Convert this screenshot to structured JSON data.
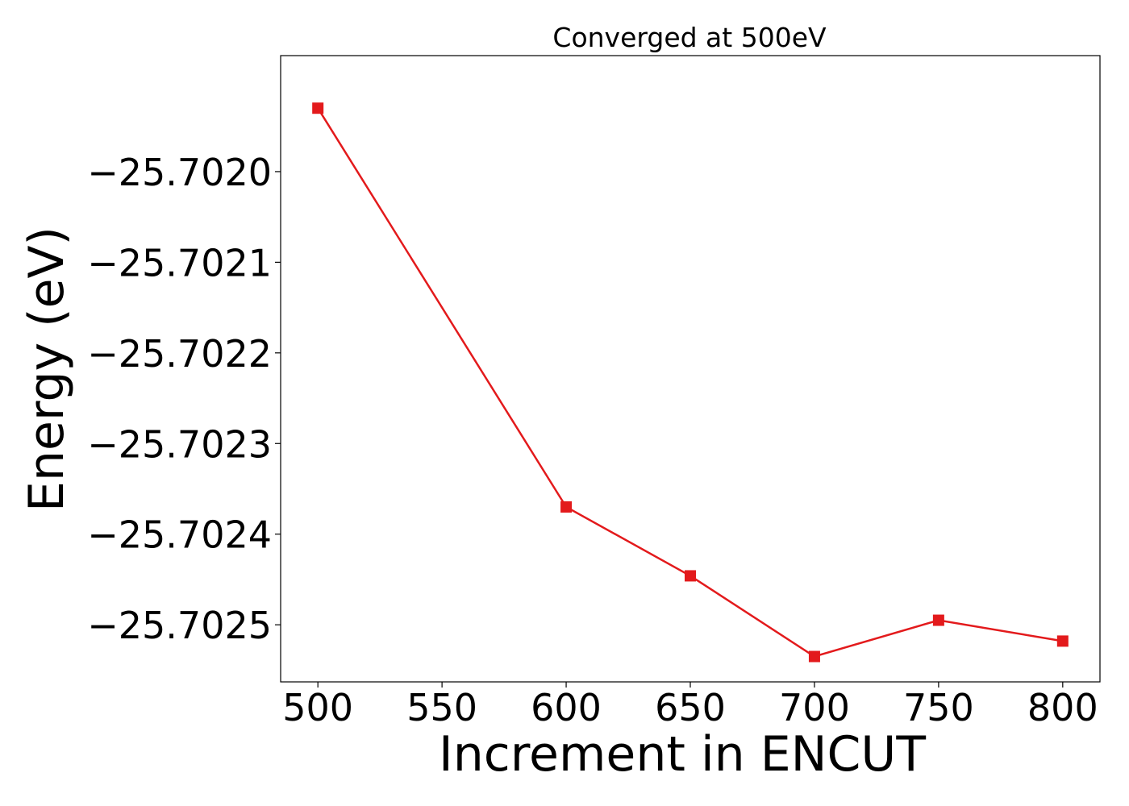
{
  "chart_data": {
    "type": "line",
    "title": "Converged at 500eV",
    "xlabel": "Increment in ENCUT",
    "ylabel": "Energy (eV)",
    "x": [
      500,
      600,
      650,
      700,
      750,
      800
    ],
    "series": [
      {
        "values": [
          -25.70193,
          -25.70237,
          -25.702446,
          -25.702535,
          -25.702495,
          -25.702518
        ],
        "color": "#e31a1c",
        "marker": "square"
      }
    ],
    "xlim": [
      485,
      815
    ],
    "ylim": [
      -25.702563,
      -25.701872
    ],
    "xticks": [
      500,
      550,
      600,
      650,
      700,
      750,
      800
    ],
    "xtick_labels": [
      "500",
      "550",
      "600",
      "650",
      "700",
      "750",
      "800"
    ],
    "yticks": [
      -25.702,
      -25.7021,
      -25.7022,
      -25.7023,
      -25.7024,
      -25.7025
    ],
    "ytick_labels": [
      "−25.7020",
      "−25.7021",
      "−25.7022",
      "−25.7023",
      "−25.7024",
      "−25.7025"
    ],
    "grid": false,
    "legend": "none"
  }
}
